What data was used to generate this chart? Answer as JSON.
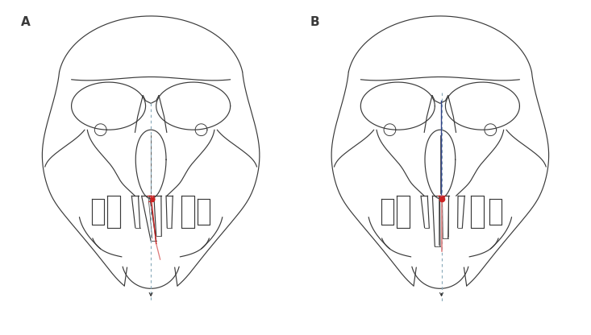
{
  "fig_width": 7.33,
  "fig_height": 4.16,
  "dpi": 100,
  "bg_color": "#ffffff",
  "label_A": "A",
  "label_B": "B",
  "lc": "#3a3a3a",
  "rc": "#cc2222",
  "rl": "#dd7777",
  "bd": "#8aabbb",
  "bl": "#334488",
  "lw": 0.85
}
